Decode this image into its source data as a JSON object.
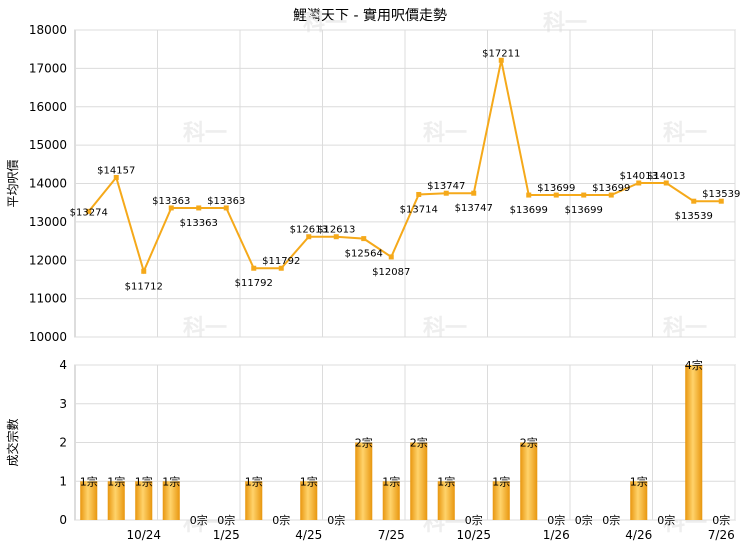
{
  "chart_data": [
    {
      "type": "line",
      "title": "鯉灣天下 - 實用呎價走勢",
      "ylabel": "平均呎價",
      "ylim": [
        10000,
        18000
      ],
      "yticks": [
        10000,
        11000,
        12000,
        13000,
        14000,
        15000,
        16000,
        17000,
        18000
      ],
      "xtick_labels": [
        "10/24",
        "1/25",
        "4/25",
        "7/25",
        "10/25",
        "1/26",
        "4/26",
        "7/26"
      ],
      "grid": true,
      "series": [
        {
          "color": "#f5a91a",
          "values": [
            13274,
            14157,
            11712,
            13363,
            13363,
            13363,
            11792,
            11792,
            12613,
            12613,
            12564,
            12087,
            13714,
            13747,
            13747,
            17211,
            13699,
            13699,
            13699,
            13699,
            14013,
            14013,
            13539,
            13539
          ],
          "labels": [
            "$13274",
            "$14157",
            "$11712",
            "$13363",
            "$13363",
            "$13363",
            "$11792",
            "$11792",
            "$12613",
            "$12613",
            "$12564",
            "$12087",
            "$13714",
            "$13747",
            "$13747",
            "$17211",
            "$13699",
            "$13699",
            "$13699",
            "$13699",
            "$14013",
            "$14013",
            "$13539",
            "$13539"
          ]
        }
      ]
    },
    {
      "type": "bar",
      "ylabel": "成交宗數",
      "ylim": [
        0,
        4
      ],
      "yticks": [
        0,
        1,
        2,
        3,
        4
      ],
      "xtick_labels": [
        "10/24",
        "1/25",
        "4/25",
        "7/25",
        "10/25",
        "1/26",
        "4/26",
        "7/26"
      ],
      "grid": true,
      "values": [
        1,
        1,
        1,
        1,
        0,
        0,
        1,
        0,
        1,
        0,
        2,
        1,
        2,
        1,
        0,
        1,
        2,
        0,
        0,
        0,
        1,
        0,
        4,
        0
      ],
      "labels": [
        "1宗",
        "1宗",
        "1宗",
        "1宗",
        "0宗",
        "0宗",
        "1宗",
        "0宗",
        "1宗",
        "0宗",
        "2宗",
        "1宗",
        "2宗",
        "1宗",
        "0宗",
        "1宗",
        "2宗",
        "0宗",
        "0宗",
        "0宗",
        "1宗",
        "0宗",
        "4宗",
        "0宗"
      ],
      "color": "#f5a91a"
    }
  ],
  "watermark": "科一"
}
